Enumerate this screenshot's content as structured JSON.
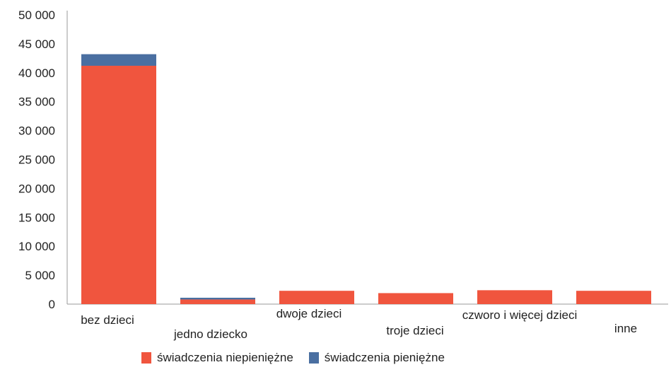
{
  "colors": {
    "niepieniezne": "#f0553e",
    "pieniezne": "#4a6fa1",
    "axis": "#999999"
  },
  "chart_data": {
    "type": "bar",
    "stacked": true,
    "categories": [
      "bez dzieci",
      "jedno dziecko",
      "dwoje dzieci",
      "troje dzieci",
      "czworo i więcej dzieci",
      "inne"
    ],
    "series": [
      {
        "name": "świadczenia niepieniężne",
        "values": [
          41200,
          800,
          2300,
          1900,
          2400,
          2300
        ]
      },
      {
        "name": "świadczenia pieniężne",
        "values": [
          2000,
          300,
          0,
          0,
          0,
          0
        ]
      }
    ],
    "ylim": [
      0,
      50000
    ],
    "yticks": [
      {
        "value": 0,
        "label": "0"
      },
      {
        "value": 5000,
        "label": "5 000"
      },
      {
        "value": 10000,
        "label": "10 000"
      },
      {
        "value": 15000,
        "label": "15 000"
      },
      {
        "value": 20000,
        "label": "20 000"
      },
      {
        "value": 25000,
        "label": "25 000"
      },
      {
        "value": 30000,
        "label": "30 000"
      },
      {
        "value": 35000,
        "label": "35 000"
      },
      {
        "value": 40000,
        "label": "40 000"
      },
      {
        "value": 45000,
        "label": "45 000"
      },
      {
        "value": 50000,
        "label": "50 000"
      }
    ],
    "grid": false,
    "legend_position": "bottom"
  }
}
